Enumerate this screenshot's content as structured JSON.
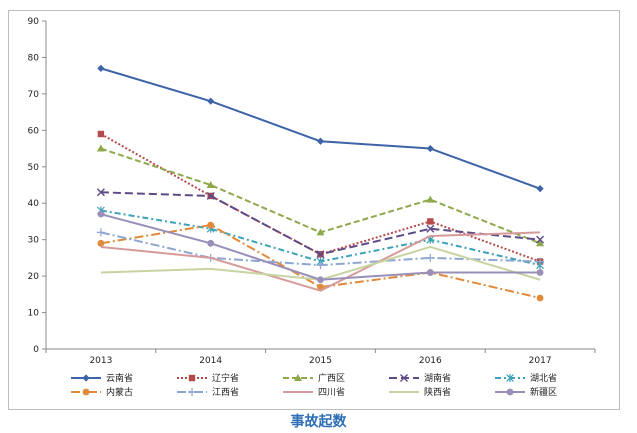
{
  "caption": "事故起数",
  "colors": {
    "axis": "#8a8a8a",
    "gridline": "#d9d9d9"
  },
  "chart_data": {
    "type": "line",
    "title": "",
    "xlabel": "",
    "ylabel": "",
    "ylim": [
      0,
      90
    ],
    "yticks": [
      0,
      10,
      20,
      30,
      40,
      50,
      60,
      70,
      80,
      90
    ],
    "categories": [
      "2013",
      "2014",
      "2015",
      "2016",
      "2017"
    ],
    "grid": false,
    "legend_position": "bottom",
    "series": [
      {
        "name": "云南省",
        "values": [
          77,
          68,
          57,
          55,
          44
        ],
        "color": "#3d63a8",
        "dash": "",
        "marker": "diamond"
      },
      {
        "name": "辽宁省",
        "values": [
          59,
          42,
          26,
          35,
          24
        ],
        "color": "#b54a4a",
        "dash": "2,2",
        "marker": "square"
      },
      {
        "name": "广西区",
        "values": [
          55,
          45,
          32,
          41,
          29
        ],
        "color": "#8fa84a",
        "dash": "6,3",
        "marker": "triangle"
      },
      {
        "name": "湖南省",
        "values": [
          43,
          42,
          26,
          33,
          30
        ],
        "color": "#5e4a86",
        "dash": "8,4",
        "marker": "x"
      },
      {
        "name": "湖北省",
        "values": [
          38,
          33,
          24,
          30,
          23
        ],
        "color": "#3aa1b8",
        "dash": "6,3,2,3",
        "marker": "star"
      },
      {
        "name": "内蒙古",
        "values": [
          29,
          34,
          17,
          21,
          14
        ],
        "color": "#e08a3a",
        "dash": "9,3,2,3",
        "marker": "circle"
      },
      {
        "name": "江西省",
        "values": [
          32,
          25,
          23,
          25,
          24
        ],
        "color": "#8fa6cf",
        "dash": "9,3,2,3",
        "marker": "plus"
      },
      {
        "name": "四川省",
        "values": [
          28,
          25,
          16,
          31,
          32
        ],
        "color": "#d79a9a",
        "dash": "",
        "marker": "none"
      },
      {
        "name": "陕西省",
        "values": [
          21,
          22,
          19,
          28,
          19
        ],
        "color": "#c7d4a2",
        "dash": "",
        "marker": "none"
      },
      {
        "name": "新疆区",
        "values": [
          37,
          29,
          19,
          21,
          21
        ],
        "color": "#9a8fb8",
        "dash": "",
        "marker": "circle"
      }
    ]
  }
}
